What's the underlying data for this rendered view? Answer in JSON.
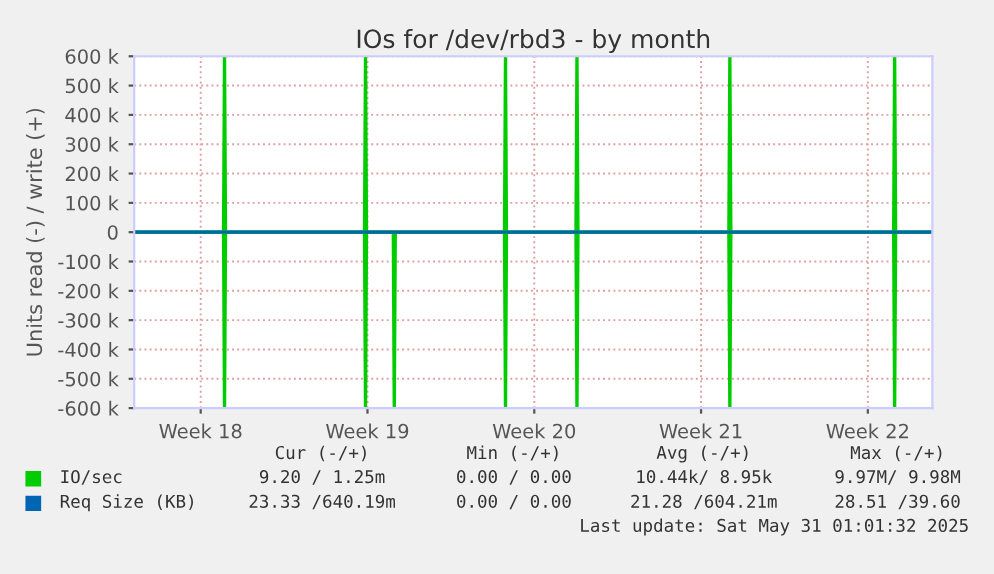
{
  "chart_data": {
    "type": "line",
    "title": "IOs for /dev/rbd3 - by month",
    "ylabel": "Units read (-) / write (+)",
    "xlim": [
      "2025-04-27T13:00",
      "2025-05-31T01:00"
    ],
    "xticks": [
      {
        "value": "2025-04-30T08:00",
        "label": "Week 18"
      },
      {
        "value": "2025-05-07T08:00",
        "label": "Week 19"
      },
      {
        "value": "2025-05-14T08:00",
        "label": "Week 20"
      },
      {
        "value": "2025-05-21T08:00",
        "label": "Week 21"
      },
      {
        "value": "2025-05-28T08:00",
        "label": "Week 22"
      }
    ],
    "ylim": [
      -600000,
      600000
    ],
    "yticks": [
      {
        "value": -600000,
        "label": "-600 k"
      },
      {
        "value": -500000,
        "label": "-500 k"
      },
      {
        "value": -400000,
        "label": "-400 k"
      },
      {
        "value": -300000,
        "label": "-300 k"
      },
      {
        "value": -200000,
        "label": "-200 k"
      },
      {
        "value": -100000,
        "label": "-100 k"
      },
      0,
      {
        "value": 100000,
        "label": "100 k"
      },
      {
        "value": 200000,
        "label": "200 k"
      },
      {
        "value": 300000,
        "label": "300 k"
      },
      {
        "value": 400000,
        "label": "400 k"
      },
      {
        "value": 500000,
        "label": "500 k"
      },
      {
        "value": 600000,
        "label": "600 k"
      }
    ],
    "grid": true,
    "legend": "bottom",
    "marker": "none",
    "line_style": "solid",
    "series": [
      {
        "name": "IO/sec",
        "color": "#00cc00",
        "x": [
          "2025-04-27T13:00",
          "2025-05-01T07:00",
          "2025-05-01T08:00",
          "2025-05-01T09:00",
          "2025-05-07T05:00",
          "2025-05-07T06:00",
          "2025-05-07T07:00",
          "2025-05-13T02:00",
          "2025-05-13T03:00",
          "2025-05-13T04:00",
          "2025-05-16T02:00",
          "2025-05-16T03:00",
          "2025-05-16T04:00",
          "2025-05-22T12:00",
          "2025-05-22T13:00",
          "2025-05-22T14:00",
          "2025-05-29T10:00",
          "2025-05-29T11:00",
          "2025-05-29T12:00",
          "2025-05-31T01:00"
        ],
        "values": [
          0,
          0,
          600000,
          0,
          0,
          600000,
          0,
          0,
          600000,
          0,
          0,
          600000,
          0,
          0,
          600000,
          0,
          0,
          600000,
          0,
          0
        ]
      },
      {
        "color": "#00cc00",
        "x": [
          "2025-04-27T13:00",
          "2025-05-01T07:00",
          "2025-05-01T08:00",
          "2025-05-01T09:00",
          "2025-05-07T05:00",
          "2025-05-07T06:00",
          "2025-05-07T07:00",
          "2025-05-08T10:00",
          "2025-05-08T11:00",
          "2025-05-08T12:00",
          "2025-05-13T02:00",
          "2025-05-13T03:00",
          "2025-05-13T04:00",
          "2025-05-16T02:00",
          "2025-05-16T03:00",
          "2025-05-16T04:00",
          "2025-05-22T12:00",
          "2025-05-22T13:00",
          "2025-05-22T14:00",
          "2025-05-29T10:00",
          "2025-05-29T11:00",
          "2025-05-29T12:00",
          "2025-05-31T01:00"
        ],
        "values": [
          0,
          0,
          -600000,
          0,
          0,
          -600000,
          0,
          0,
          -600000,
          0,
          0,
          -600000,
          0,
          0,
          -600000,
          0,
          0,
          -600000,
          0,
          0,
          -600000,
          0,
          0
        ]
      },
      {
        "name": "Req Size (KB)",
        "color": "#0066b3",
        "x": [
          "2025-04-27T13:00",
          "2025-05-31T01:00"
        ],
        "values": [
          0,
          0
        ]
      }
    ],
    "annotations": [
      "Cur (-/+)",
      "Min (-/+)",
      "Avg (-/+)",
      "Max (-/+)",
      "9.20 / 1.25m",
      "0.00 / 0.00",
      "10.44k/ 8.95k",
      "9.97M/ 9.98M",
      "23.33 /640.19m",
      "0.00 / 0.00",
      "21.28 /604.21m",
      "28.51 /39.60",
      "Last update: Sat May 31 01:01:32 2025"
    ]
  }
}
